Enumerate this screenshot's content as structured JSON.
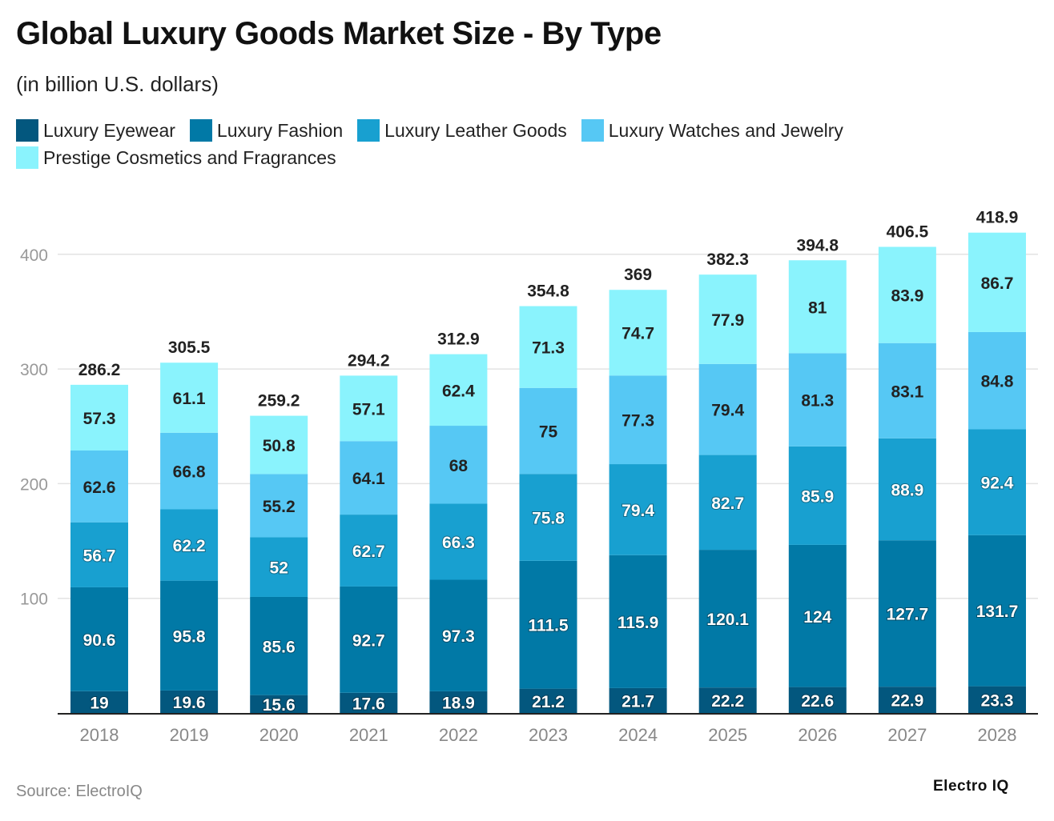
{
  "chart_data": {
    "type": "bar",
    "stacked": true,
    "title": "Global Luxury Goods Market Size - By Type",
    "subtitle": "(in billion U.S. dollars)",
    "categories": [
      "2018",
      "2019",
      "2020",
      "2021",
      "2022",
      "2023",
      "2024",
      "2025",
      "2026",
      "2027",
      "2028"
    ],
    "series": [
      {
        "name": "Luxury Eyewear",
        "color": "#03577e",
        "values": [
          19,
          19.6,
          15.6,
          17.6,
          18.9,
          21.2,
          21.7,
          22.2,
          22.6,
          22.9,
          23.3
        ]
      },
      {
        "name": "Luxury Fashion",
        "color": "#0179a6",
        "values": [
          90.6,
          95.8,
          85.6,
          92.7,
          97.3,
          111.5,
          115.9,
          120.1,
          124,
          127.7,
          131.7
        ]
      },
      {
        "name": "Luxury Leather Goods",
        "color": "#18a0d0",
        "values": [
          56.7,
          62.2,
          52,
          62.7,
          66.3,
          75.8,
          79.4,
          82.7,
          85.9,
          88.9,
          92.4
        ]
      },
      {
        "name": "Luxury Watches and Jewelry",
        "color": "#56c8f4",
        "values": [
          62.6,
          66.8,
          55.2,
          64.1,
          68,
          75,
          77.3,
          79.4,
          81.3,
          83.1,
          84.8
        ]
      },
      {
        "name": "Prestige Cosmetics and Fragrances",
        "color": "#8af3fd",
        "values": [
          57.3,
          61.1,
          50.8,
          57.1,
          62.4,
          71.3,
          74.7,
          77.9,
          81,
          83.9,
          86.7
        ]
      }
    ],
    "totals": [
      286.2,
      305.5,
      259.2,
      294.2,
      312.9,
      354.8,
      369,
      382.3,
      394.8,
      406.5,
      418.9
    ],
    "yticks": [
      100,
      200,
      300,
      400
    ],
    "ylim": [
      0,
      440
    ],
    "grid": true,
    "legend": "top"
  },
  "footer": {
    "source": "Source: ElectroIQ",
    "logo": "Electro IQ"
  }
}
